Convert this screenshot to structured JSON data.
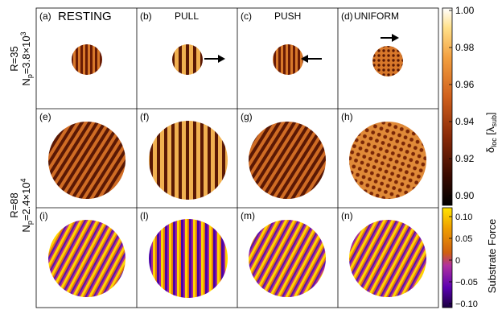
{
  "figure": {
    "rows": [
      {
        "label_line1": "R=35",
        "label_line2_prefix": "N",
        "label_line2_sub": "p",
        "label_line2_eq": "=3.8×10",
        "label_line2_sup": "3"
      },
      {
        "label_line1": "R=88",
        "label_line2_prefix": "N",
        "label_line2_sub": "p",
        "label_line2_eq": "=2.4×10",
        "label_line2_sup": "4"
      }
    ],
    "columns": [
      "RESTING",
      "PULL",
      "PUSH",
      "UNIFORM"
    ],
    "panel_letters": [
      "(a)",
      "(b)",
      "(c)",
      "(d)",
      "(e)",
      "(f)",
      "(g)",
      "(h)",
      "(i)",
      "(l)",
      "(m)",
      "(n)"
    ],
    "colorbar_top": {
      "ticks": [
        "1.00",
        "0.98",
        "0.96",
        "0.94",
        "0.92",
        "0.90"
      ],
      "label_main": "δ",
      "label_sub": "loc",
      "label_rest": " [λ",
      "label_rest_sub": "sub",
      "label_end": "]"
    },
    "colorbar_bottom": {
      "ticks": [
        "0.10",
        "0.05",
        "0",
        "−0.05",
        "−0.10"
      ],
      "label": "Substrate Force"
    },
    "colors": {
      "heat_dark": "#2a0a00",
      "heat_mid": "#c0501a",
      "heat_light": "#ffd070",
      "force_yellow": "#ffd400",
      "force_orange": "#d66010",
      "force_purple": "#6a00c8",
      "force_dark": "#2a0060"
    }
  }
}
